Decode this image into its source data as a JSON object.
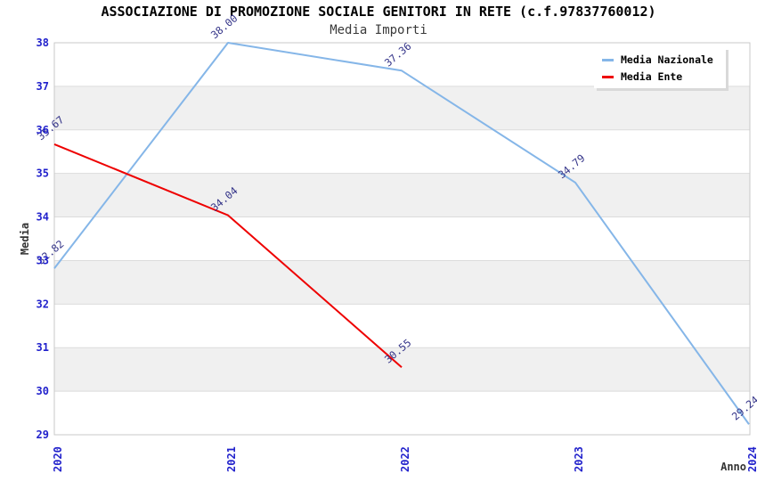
{
  "header": {
    "title": "ASSOCIAZIONE DI PROMOZIONE SOCIALE GENITORI IN RETE (c.f.97837760012)",
    "subtitle": "Media Importi"
  },
  "legend": {
    "items": [
      {
        "label": "Media Nazionale",
        "color": "#85B6E8"
      },
      {
        "label": "Media Ente",
        "color": "#EE0000"
      }
    ]
  },
  "axes": {
    "y_title": "Media",
    "x_title": "Anno",
    "y_tick_labels": [
      "29",
      "30",
      "31",
      "32",
      "33",
      "34",
      "35",
      "36",
      "37",
      "38"
    ],
    "x_tick_labels": [
      "2020",
      "2021",
      "2022",
      "2023",
      "2024"
    ]
  },
  "chart_data": {
    "type": "line",
    "title": "ASSOCIAZIONE DI PROMOZIONE SOCIALE GENITORI IN RETE (c.f.97837760012)",
    "subtitle": "Media Importi",
    "categories": [
      "2020",
      "2021",
      "2022",
      "2023",
      "2024"
    ],
    "series": [
      {
        "name": "Media Nazionale",
        "color": "#85B6E8",
        "values": [
          32.82,
          38.0,
          37.36,
          34.79,
          29.24
        ],
        "point_labels": [
          "32.82",
          "38.00",
          "37.36",
          "34.79",
          "29.24"
        ]
      },
      {
        "name": "Media Ente",
        "color": "#EE0000",
        "values": [
          35.67,
          34.04,
          30.55,
          null,
          null
        ],
        "point_labels": [
          "35.67",
          "34.04",
          "30.55",
          null,
          null
        ]
      }
    ],
    "xlabel": "Anno",
    "ylabel": "Media",
    "ylim": [
      29,
      38
    ],
    "ytick_step": 1,
    "grid": true,
    "bands": true,
    "legend_position": "top-right",
    "colors": {
      "tick_label": "#2222CC",
      "value_label": "#333388",
      "band": "#F0F0F0",
      "plot_bg": "#FFFFFF",
      "grid": "#DCDCDC",
      "border": "#C9C9C9",
      "title": "#000000",
      "subtitle": "#3A3A3A",
      "axis_title": "#333333"
    }
  }
}
